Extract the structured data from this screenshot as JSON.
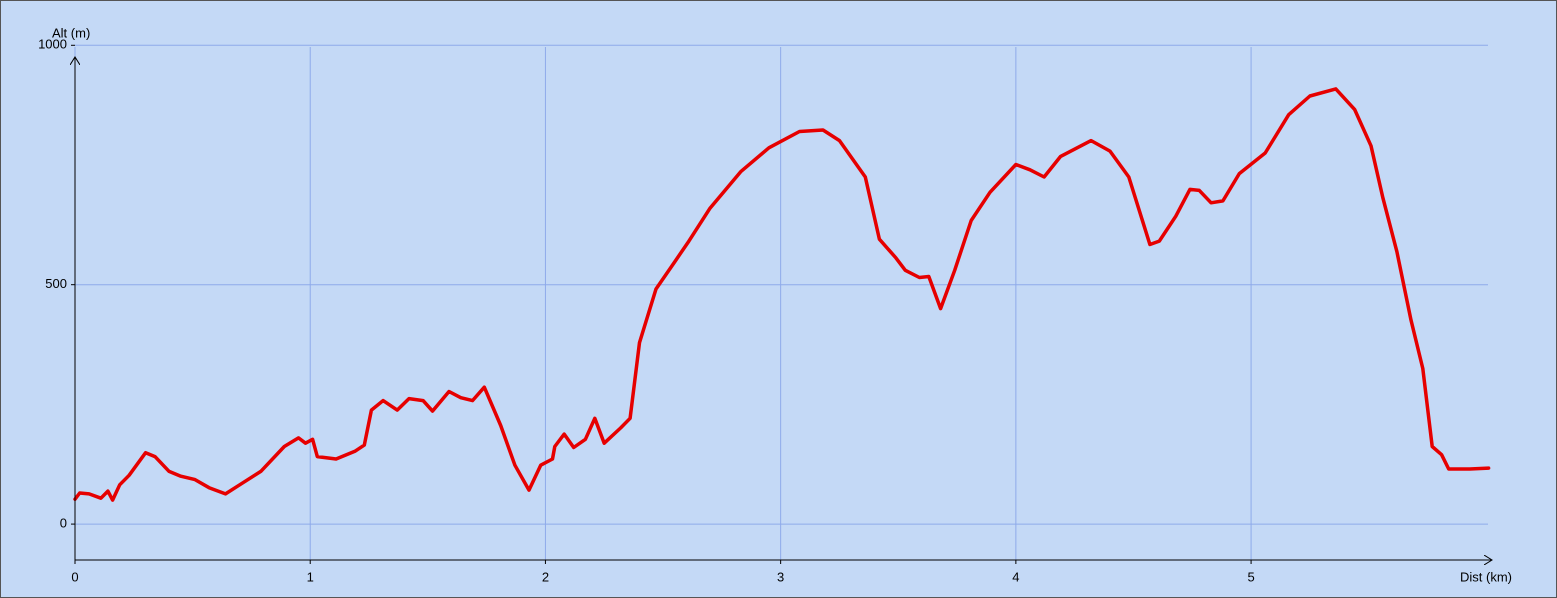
{
  "chart_data": {
    "type": "line",
    "x_label": "Dist (km)",
    "y_label": "Alt (m)",
    "x": [
      0,
      0.02,
      0.06,
      0.11,
      0.14,
      0.16,
      0.19,
      0.23,
      0.3,
      0.34,
      0.4,
      0.45,
      0.51,
      0.57,
      0.64,
      0.7,
      0.79,
      0.89,
      0.95,
      0.98,
      1.01,
      1.03,
      1.11,
      1.19,
      1.23,
      1.26,
      1.31,
      1.37,
      1.42,
      1.48,
      1.52,
      1.59,
      1.64,
      1.69,
      1.74,
      1.81,
      1.87,
      1.93,
      1.98,
      2.03,
      2.04,
      2.08,
      2.12,
      2.17,
      2.21,
      2.25,
      2.32,
      2.36,
      2.4,
      2.47,
      2.55,
      2.61,
      2.7,
      2.83,
      2.95,
      3.08,
      3.18,
      3.25,
      3.36,
      3.42,
      3.49,
      3.53,
      3.59,
      3.63,
      3.68,
      3.74,
      3.81,
      3.89,
      4.0,
      4.06,
      4.12,
      4.19,
      4.32,
      4.4,
      4.48,
      4.57,
      4.61,
      4.68,
      4.74,
      4.78,
      4.83,
      4.88,
      4.95,
      5.06,
      5.16,
      5.25,
      5.36,
      5.44,
      5.51,
      5.56,
      5.62,
      5.68,
      5.73,
      5.77,
      5.81,
      5.84,
      5.93,
      6.01
    ],
    "series": [
      {
        "color": "#e60000",
        "values": [
          52,
          65,
          63,
          54,
          69,
          50,
          82,
          102,
          149,
          141,
          110,
          100,
          93,
          76,
          63,
          82,
          110,
          162,
          180,
          169,
          177,
          141,
          136,
          152,
          165,
          238,
          258,
          238,
          262,
          258,
          236,
          277,
          264,
          258,
          286,
          206,
          123,
          71,
          123,
          136,
          162,
          188,
          160,
          177,
          221,
          169,
          201,
          221,
          379,
          491,
          548,
          591,
          660,
          736,
          786,
          820,
          823,
          801,
          725,
          595,
          556,
          530,
          515,
          517,
          450,
          530,
          634,
          693,
          751,
          740,
          725,
          768,
          801,
          779,
          725,
          584,
          591,
          643,
          699,
          697,
          671,
          675,
          732,
          775,
          855,
          894,
          909,
          866,
          790,
          682,
          569,
          426,
          325,
          162,
          145,
          115,
          115,
          117
        ]
      }
    ],
    "xlim": [
      0,
      6.02
    ],
    "ylim": [
      -75,
      1010
    ],
    "xticks": [
      0,
      1,
      2,
      3,
      4,
      5
    ],
    "yticks": [
      0,
      500,
      1000
    ],
    "grid": true
  }
}
